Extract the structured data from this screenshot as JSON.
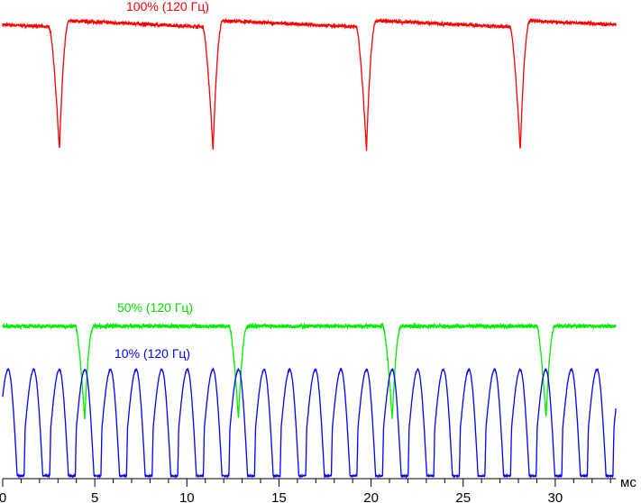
{
  "chart_data": {
    "type": "line",
    "title": "",
    "xlabel": "мс",
    "ylabel": "",
    "xlim": [
      0,
      33.3
    ],
    "ylim": [
      0,
      100
    ],
    "x_ticks": [
      0,
      5,
      10,
      15,
      20,
      25,
      30
    ],
    "minor_tick_step": 1,
    "grid": false,
    "series": [
      {
        "name": "100% (120 Гц)",
        "color": "#ff0000",
        "kind": "dips",
        "baseline_high": 99.5,
        "baseline_low": 98.0,
        "dip_min": 71.2,
        "dip_centers_ms": [
          3.08,
          11.42,
          19.75,
          28.1
        ],
        "dip_width_ms": 0.55,
        "noise": 0.35
      },
      {
        "name": "50% (120 Гц)",
        "color": "#00ee00",
        "kind": "dips",
        "baseline_high": 33.1,
        "baseline_low": 33.1,
        "dip_min": 12.9,
        "dip_centers_ms": [
          4.45,
          12.8,
          21.15,
          29.5
        ],
        "dip_width_ms": 0.5,
        "noise": 0.4
      },
      {
        "name": "10% (120 Гц)",
        "color": "#0000ff",
        "kind": "pwm",
        "peak": 23.7,
        "low": 0.6,
        "period_ms": 1.39,
        "first_peak_ms": 0.3
      }
    ]
  }
}
